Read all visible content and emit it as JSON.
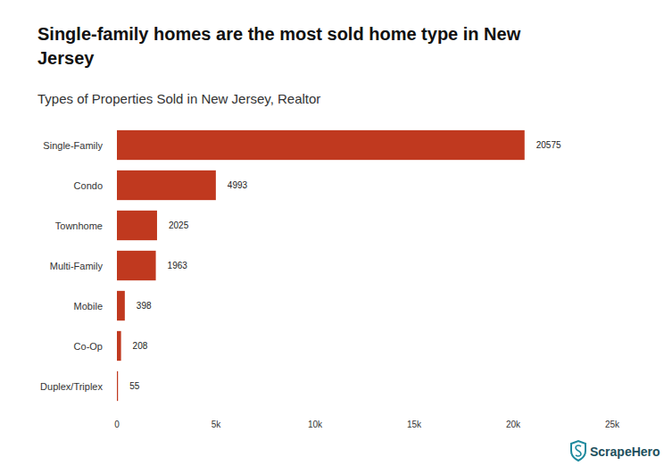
{
  "chart_data": {
    "type": "bar",
    "orientation": "horizontal",
    "title": "Single-family homes are the most sold home type in New Jersey",
    "subtitle": "Types of Properties Sold in New Jersey, Realtor",
    "categories": [
      "Single-Family",
      "Condo",
      "Townhome",
      "Multi-Family",
      "Mobile",
      "Co-Op",
      "Duplex/Triplex"
    ],
    "values": [
      20575,
      4993,
      2025,
      1963,
      398,
      208,
      55
    ],
    "color": "#c0391f",
    "xlim": [
      0,
      25000
    ],
    "xticks": [
      0,
      {
        "value": 5000,
        "label": "5k"
      },
      {
        "value": 10000,
        "label": "10k"
      },
      {
        "value": 15000,
        "label": "15k"
      },
      {
        "value": 20000,
        "label": "20k"
      },
      {
        "value": 25000,
        "label": "25k"
      }
    ],
    "grid": false,
    "data_labels": true,
    "source": "ScrapeHero"
  }
}
